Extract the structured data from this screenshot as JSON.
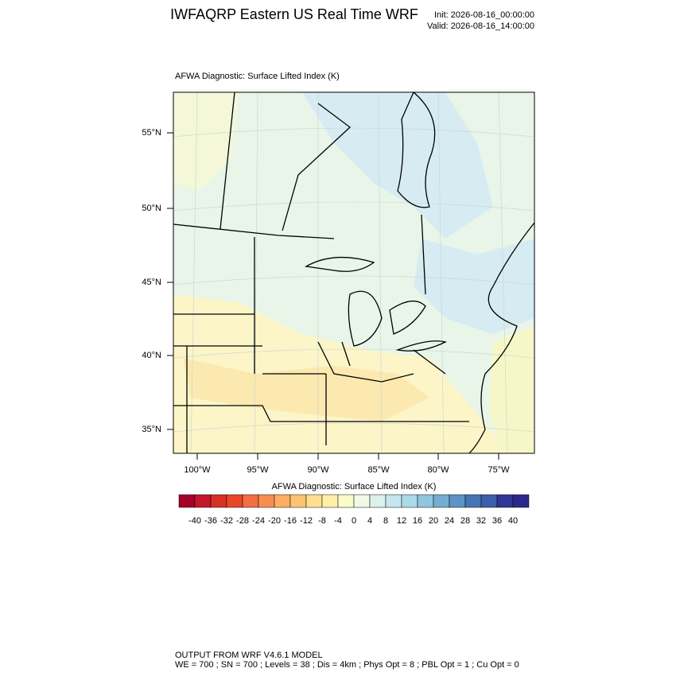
{
  "header": {
    "title": "IWFAQRP Eastern US Real Time WRF",
    "init": "Init: 2026-08-16_00:00:00",
    "valid": "Valid: 2026-08-16_14:00:00"
  },
  "map": {
    "title": "AFWA Diagnostic: Surface Lifted Index   (K)",
    "lat_labels": [
      "55°N",
      "50°N",
      "45°N",
      "40°N",
      "35°N"
    ],
    "lon_labels": [
      "100°W",
      "95°W",
      "90°W",
      "85°W",
      "80°W",
      "75°W"
    ]
  },
  "colorbar": {
    "title": "AFWA Diagnostic: Surface Lifted Index  (K)",
    "colors": [
      "#a50026",
      "#c4172b",
      "#d73027",
      "#e8472b",
      "#f46d43",
      "#f88d52",
      "#fdae61",
      "#fdc274",
      "#fee090",
      "#fff0a8",
      "#fafcc8",
      "#f0f9e8",
      "#dcf0ee",
      "#c6e6ef",
      "#abd9e9",
      "#92c5de",
      "#74add1",
      "#5d93c4",
      "#4575b4",
      "#3b5fa8",
      "#313695",
      "#2b2a8a"
    ],
    "levels": [
      -40,
      -36,
      -32,
      -28,
      -24,
      -20,
      -16,
      -12,
      -8,
      -4,
      0,
      4,
      8,
      12,
      16,
      20,
      24,
      28,
      32,
      36,
      40
    ]
  },
  "footer": {
    "line1": "OUTPUT FROM WRF V4.6.1 MODEL",
    "line2": "WE = 700 ; SN = 700 ; Levels = 38 ; Dis = 4km ; Phys Opt = 8 ; PBL Opt = 1 ; Cu Opt = 0"
  }
}
